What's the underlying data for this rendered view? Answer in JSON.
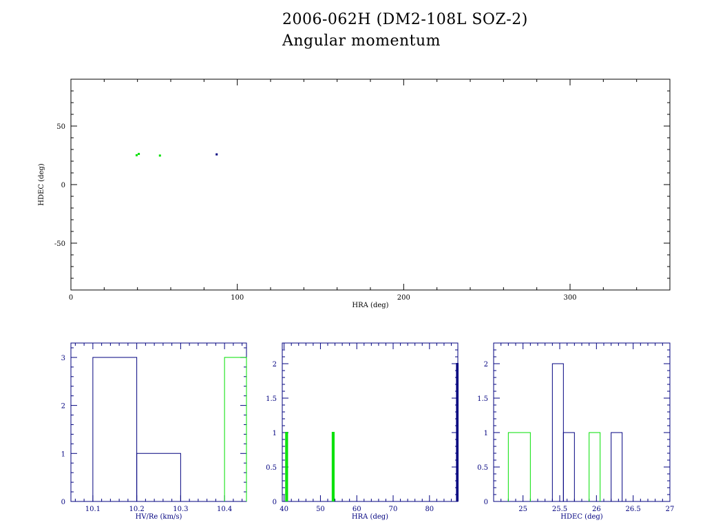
{
  "header": {
    "title": "2006-062H (DM2-108L SOZ-2)",
    "subtitle": "Angular momentum"
  },
  "colors": {
    "axis_main": "#000000",
    "axis_hist": "#00007f",
    "series_blue": "#00007f",
    "series_green": "#00e000"
  },
  "chart_data": [
    {
      "type": "scatter",
      "xlabel": "HRA (deg)",
      "ylabel": "HDEC (deg)",
      "xlim": [
        0,
        360
      ],
      "ylim": [
        -90,
        90
      ],
      "xticks": [
        0,
        100,
        200,
        300
      ],
      "yticks": [
        -50,
        0,
        50
      ],
      "series": [
        {
          "color": "green",
          "points": [
            [
              39.5,
              25.1
            ],
            [
              40.8,
              26.2
            ],
            [
              53.5,
              24.8
            ]
          ]
        },
        {
          "color": "blue",
          "points": [
            [
              87.6,
              25.8
            ]
          ]
        }
      ]
    },
    {
      "type": "bar",
      "xlabel": "HV/Re (km/s)",
      "ylabel": "",
      "xlim": [
        10.05,
        10.45
      ],
      "ylim": [
        0,
        3.3
      ],
      "xticks": [
        10.1,
        10.2,
        10.3,
        10.4
      ],
      "xtick_labels": [
        "10.1",
        "10.2",
        "10.3",
        "10.4"
      ],
      "yticks": [
        0,
        1,
        2,
        3
      ],
      "ytick_labels": [
        "0",
        "1",
        "2",
        "3"
      ],
      "series": [
        {
          "color": "blue",
          "bins": [
            [
              10.1,
              10.2,
              3
            ],
            [
              10.2,
              10.3,
              1
            ]
          ]
        },
        {
          "color": "green",
          "bins": [
            [
              10.4,
              10.46,
              3
            ]
          ]
        }
      ]
    },
    {
      "type": "bar",
      "xlabel": "HRA (deg)",
      "ylabel": "",
      "xlim": [
        39.5,
        87.8
      ],
      "ylim": [
        0,
        2.3
      ],
      "xticks": [
        40,
        50,
        60,
        70,
        80
      ],
      "xtick_labels": [
        "40",
        "50",
        "60",
        "70",
        "80"
      ],
      "yticks": [
        0,
        0.5,
        1,
        1.5,
        2
      ],
      "ytick_labels": [
        "0",
        "0.5",
        "1",
        "1.5",
        "2"
      ],
      "series": [
        {
          "color": "green",
          "bins": [
            [
              40.5,
              40.9,
              1
            ],
            [
              53.3,
              53.7,
              1
            ]
          ]
        },
        {
          "color": "blue",
          "bins": [
            [
              87.5,
              87.8,
              2
            ]
          ]
        }
      ]
    },
    {
      "type": "bar",
      "xlabel": "HDEC (deg)",
      "ylabel": "",
      "xlim": [
        24.6,
        27.0
      ],
      "ylim": [
        0,
        2.3
      ],
      "xticks": [
        25,
        25.5,
        26,
        26.5,
        27
      ],
      "xtick_labels": [
        "25",
        "25.5",
        "26",
        "26.5",
        "27"
      ],
      "yticks": [
        0,
        0.5,
        1,
        1.5,
        2
      ],
      "ytick_labels": [
        "0",
        "0.5",
        "1",
        "1.5",
        "2"
      ],
      "series": [
        {
          "color": "green",
          "bins": [
            [
              24.8,
              25.1,
              1
            ],
            [
              25.9,
              26.05,
              1
            ]
          ]
        },
        {
          "color": "blue",
          "bins": [
            [
              25.4,
              25.55,
              2
            ],
            [
              25.55,
              25.7,
              1
            ],
            [
              26.2,
              26.35,
              1
            ]
          ]
        }
      ]
    }
  ]
}
